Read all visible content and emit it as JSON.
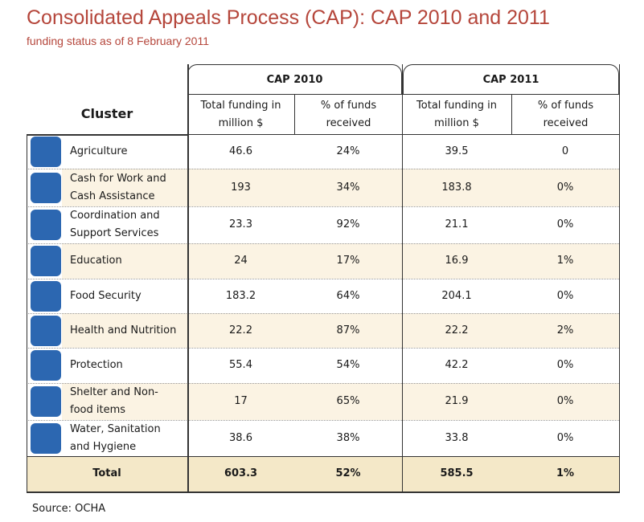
{
  "title": "Consolidated Appeals Process (CAP): CAP 2010 and 2011",
  "subtitle": "funding status as of 8 February 2011",
  "table": {
    "cluster_header": "Cluster",
    "group_headers": [
      "CAP 2010",
      "CAP 2011"
    ],
    "column_headers": [
      "Total funding in million $",
      "% of funds received",
      "Total funding in million $",
      "% of funds received"
    ],
    "rows": [
      [
        "Agriculture",
        "46.6",
        "24%",
        "39.5",
        "0"
      ],
      [
        "Cash for Work and Cash Assistance",
        "193",
        "34%",
        "183.8",
        "0%"
      ],
      [
        "Coordination and Support Services",
        "23.3",
        "92%",
        "21.1",
        "0%"
      ],
      [
        "Education",
        "24",
        "17%",
        "16.9",
        "1%"
      ],
      [
        "Food Security",
        "183.2",
        "64%",
        "204.1",
        "0%"
      ],
      [
        "Health and Nutrition",
        "22.2",
        "87%",
        "22.2",
        "2%"
      ],
      [
        "Protection",
        "55.4",
        "54%",
        "42.2",
        "0%"
      ],
      [
        "Shelter and Non-food items",
        "17",
        "65%",
        "21.9",
        "0%"
      ],
      [
        "Water, Sanitation and Hygiene",
        "38.6",
        "38%",
        "33.8",
        "0%"
      ]
    ],
    "total": [
      "Total",
      "603.3",
      "52%",
      "585.5",
      "1%"
    ]
  },
  "source": "Source: OCHA"
}
